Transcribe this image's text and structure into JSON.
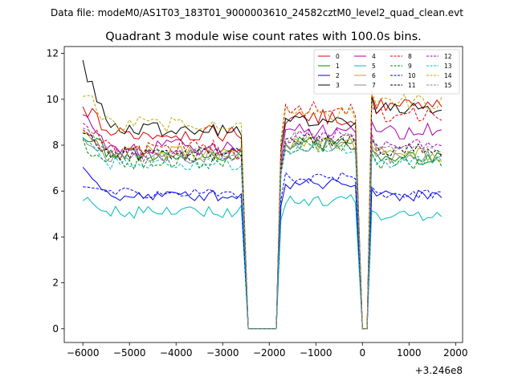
{
  "figure": {
    "suptitle": "Data file: modeM0/AS1T03_183T01_9000003610_24582cztM0_level2_quad_clean.evt",
    "title": "Quadrant 3 module wise count rates with 100.0s bins.",
    "offset_label": "+3.246e8"
  },
  "chart_data": {
    "type": "line",
    "title": "Quadrant 3 module wise count rates with 100.0s bins.",
    "xlabel": "",
    "ylabel": "",
    "x_offset": 324600000,
    "xlim": [
      -6400,
      2150
    ],
    "ylim": [
      -0.6,
      12.3
    ],
    "xticks": [
      -6000,
      -5000,
      -4000,
      -3000,
      -2000,
      -1000,
      0,
      1000,
      2000
    ],
    "xtick_labels": [
      "−6000",
      "−5000",
      "−4000",
      "−3000",
      "−2000",
      "−1000",
      "0",
      "1000",
      "2000"
    ],
    "yticks": [
      0,
      2,
      4,
      6,
      8,
      10,
      12
    ],
    "ytick_labels": [
      "0",
      "2",
      "4",
      "6",
      "8",
      "10",
      "12"
    ],
    "legend_position": "upper-right",
    "legend_columns": 4,
    "gaps": [
      {
        "start": -2450,
        "end": -1850
      },
      {
        "start": 0,
        "end": 100
      }
    ],
    "segments": [
      {
        "start": -6000,
        "end": -2550,
        "step": 100
      },
      {
        "start": -1750,
        "end": -100,
        "step": 100
      },
      {
        "start": 200,
        "end": 1750,
        "step": 100
      }
    ],
    "series": [
      {
        "name": "0",
        "color": "#dd0000",
        "dash": "solid",
        "levels": [
          8.5,
          9.2,
          9.7
        ],
        "start_bump": 1.2,
        "amp": 0.35
      },
      {
        "name": "1",
        "color": "#008800",
        "dash": "solid",
        "levels": [
          7.6,
          8.1,
          7.4
        ],
        "start_bump": 0.9,
        "amp": 0.3
      },
      {
        "name": "2",
        "color": "#0000ee",
        "dash": "solid",
        "levels": [
          5.8,
          6.3,
          5.8
        ],
        "start_bump": 1.0,
        "amp": 0.25
      },
      {
        "name": "3",
        "color": "#000000",
        "dash": "solid",
        "levels": [
          8.7,
          9.1,
          9.6
        ],
        "start_bump": 2.8,
        "amp": 0.3
      },
      {
        "name": "4",
        "color": "#aa00aa",
        "dash": "solid",
        "levels": [
          7.9,
          8.6,
          8.6
        ],
        "start_bump": 1.4,
        "amp": 0.35
      },
      {
        "name": "5",
        "color": "#00bbbb",
        "dash": "solid",
        "levels": [
          5.1,
          5.6,
          4.9
        ],
        "start_bump": 0.6,
        "amp": 0.3
      },
      {
        "name": "6",
        "color": "#bbaa00",
        "dash": "solid",
        "levels": [
          7.7,
          8.1,
          7.6
        ],
        "start_bump": 1.0,
        "amp": 0.35
      },
      {
        "name": "7",
        "color": "#888888",
        "dash": "solid",
        "levels": [
          7.5,
          8.0,
          7.5
        ],
        "start_bump": 0.8,
        "amp": 0.3
      },
      {
        "name": "8",
        "color": "#dd0000",
        "dash": "dashed",
        "levels": [
          7.9,
          9.6,
          9.3
        ],
        "start_bump": 1.0,
        "amp": 0.35
      },
      {
        "name": "9",
        "color": "#008800",
        "dash": "dashed",
        "levels": [
          7.3,
          8.0,
          7.3
        ],
        "start_bump": 0.7,
        "amp": 0.35
      },
      {
        "name": "10",
        "color": "#0000ee",
        "dash": "dashed",
        "levels": [
          5.9,
          6.6,
          5.9
        ],
        "start_bump": 0.3,
        "amp": 0.25
      },
      {
        "name": "11",
        "color": "#000000",
        "dash": "dashed",
        "levels": [
          7.6,
          8.2,
          7.8
        ],
        "start_bump": 1.0,
        "amp": 0.3
      },
      {
        "name": "12",
        "color": "#aa00aa",
        "dash": "dashed",
        "levels": [
          7.6,
          8.4,
          8.1
        ],
        "start_bump": 1.2,
        "amp": 0.35
      },
      {
        "name": "13",
        "color": "#00bbbb",
        "dash": "dashed",
        "levels": [
          7.2,
          7.9,
          7.3
        ],
        "start_bump": 0.9,
        "amp": 0.3
      },
      {
        "name": "14",
        "color": "#bbaa00",
        "dash": "dashed",
        "levels": [
          8.9,
          9.4,
          9.9
        ],
        "start_bump": 1.5,
        "amp": 0.35
      },
      {
        "name": "15",
        "color": "#888888",
        "dash": "dashed",
        "levels": [
          7.6,
          8.3,
          7.9
        ],
        "start_bump": 1.0,
        "amp": 0.3
      }
    ]
  }
}
